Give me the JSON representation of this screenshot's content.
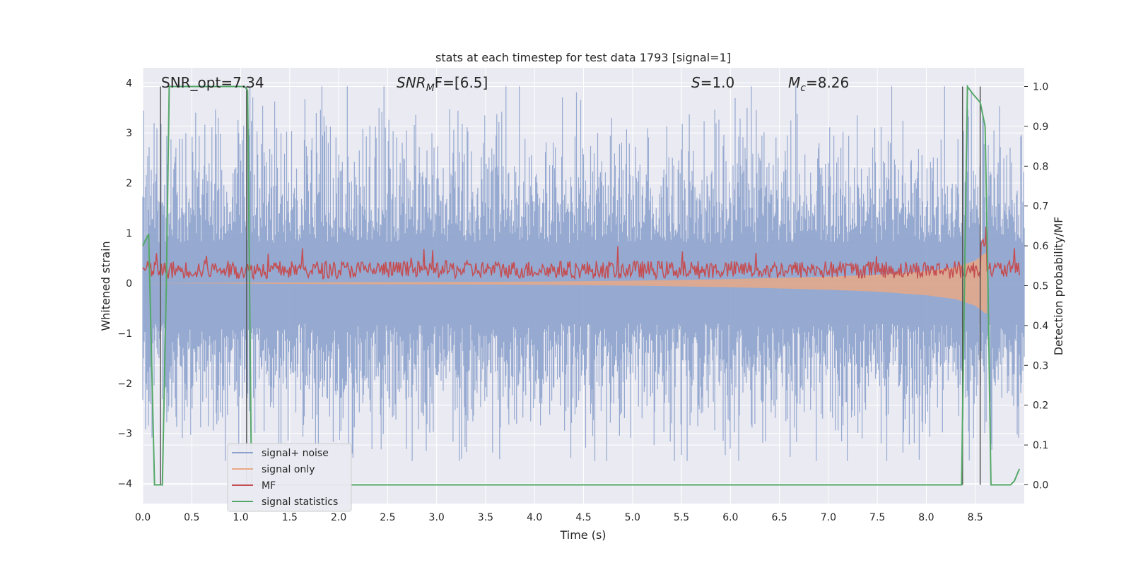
{
  "chart_data": {
    "type": "line",
    "title": "stats at each timestep for test data 1793 [signal=1]",
    "xlabel": "Time (s)",
    "ylabel_left": "Whitened strain",
    "ylabel_right": "Detection probability/MF",
    "xlim": [
      0.0,
      9.0
    ],
    "ylim_left": [
      -4.4,
      4.3
    ],
    "ylim_right": [
      -0.047,
      1.047
    ],
    "x_ticks": [
      "0.0",
      "0.5",
      "1.0",
      "1.5",
      "2.0",
      "2.5",
      "3.0",
      "3.5",
      "4.0",
      "4.5",
      "5.0",
      "5.5",
      "6.0",
      "6.5",
      "7.0",
      "7.5",
      "8.0",
      "8.5"
    ],
    "y_left_ticks": [
      "4",
      "3",
      "2",
      "1",
      "0",
      "−1",
      "−2",
      "−3",
      "−4"
    ],
    "y_right_ticks": [
      "1.0",
      "0.9",
      "0.8",
      "0.7",
      "0.6",
      "0.5",
      "0.4",
      "0.3",
      "0.2",
      "0.1",
      "0.0"
    ],
    "grid": true,
    "legend_position": "lower-left",
    "annotations": {
      "snr_opt": "SNR_opt=7.34",
      "snr_mf_name": "SNR",
      "snr_mf_sub": "M",
      "snr_mf_rest": "F=[6.5]",
      "s_name": "S",
      "s_rest": "=1.0",
      "mc_name": "M",
      "mc_sub": "c",
      "mc_rest": "=8.26"
    },
    "series": [
      {
        "name": "signal+ noise",
        "color": "#8da2cc",
        "description_axis": "left",
        "noise_amplitude_envelope": {
          "positive_typical": 2.2,
          "negative_typical": -2.2,
          "max": 3.93,
          "min": -3.55
        }
      },
      {
        "name": "signal only",
        "color": "#e8a987",
        "axis": "left",
        "x": [
          0.0,
          2.0,
          4.0,
          5.0,
          6.0,
          7.0,
          7.5,
          8.0,
          8.3,
          8.5,
          8.6,
          8.62
        ],
        "envelope": [
          0.0,
          0.02,
          0.03,
          0.05,
          0.08,
          0.13,
          0.17,
          0.24,
          0.32,
          0.45,
          0.6,
          0.6
        ]
      },
      {
        "name": "MF",
        "color": "#c44e52",
        "axis": "right",
        "baseline": 0.54,
        "max": 0.61
      },
      {
        "name": "signal statistics",
        "color": "#55a868",
        "axis": "right",
        "x": [
          0.0,
          0.06,
          0.12,
          0.2,
          0.24,
          0.27,
          0.3,
          0.6,
          1.0,
          1.04,
          1.07,
          1.11,
          1.5,
          2.0,
          4.0,
          6.0,
          8.0,
          8.3,
          8.36,
          8.42,
          8.48,
          8.55,
          8.6,
          8.63,
          8.66,
          8.8,
          8.86,
          8.9,
          8.95
        ],
        "y": [
          0.6,
          0.63,
          0.0,
          0.0,
          0.5,
          1.0,
          1.0,
          1.0,
          1.0,
          1.0,
          0.99,
          0.0,
          0.0,
          0.0,
          0.0,
          0.0,
          0.0,
          0.0,
          0.0,
          1.0,
          0.98,
          0.96,
          0.9,
          0.5,
          0.0,
          0.0,
          0.0,
          0.01,
          0.04
        ]
      }
    ],
    "vertical_markers_x": [
      0.18,
      1.06,
      8.37,
      8.55
    ]
  }
}
